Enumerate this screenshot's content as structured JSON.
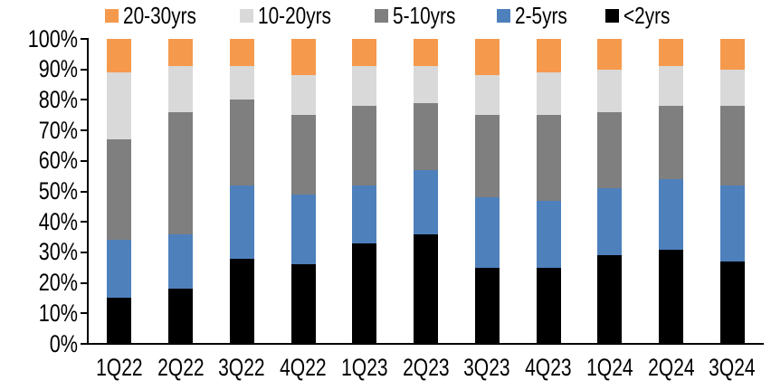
{
  "chart_data": {
    "type": "bar",
    "variant": "100-percent-stacked-column",
    "title": "",
    "xlabel": "",
    "ylabel": "",
    "categories": [
      "1Q22",
      "2Q22",
      "3Q22",
      "4Q22",
      "1Q23",
      "2Q23",
      "3Q23",
      "4Q23",
      "1Q24",
      "2Q24",
      "3Q24"
    ],
    "series": [
      {
        "name": "<2yrs",
        "color": "#000000",
        "values": [
          15,
          18,
          28,
          26,
          33,
          36,
          25,
          25,
          29,
          31,
          27
        ]
      },
      {
        "name": "2-5yrs",
        "color": "#4E80BC",
        "values": [
          19,
          18,
          24,
          23,
          19,
          21,
          23,
          22,
          22,
          23,
          25
        ]
      },
      {
        "name": "5-10yrs",
        "color": "#7F7F7F",
        "values": [
          33,
          40,
          28,
          26,
          26,
          22,
          27,
          28,
          25,
          24,
          26
        ]
      },
      {
        "name": "10-20yrs",
        "color": "#D9D9D9",
        "values": [
          22,
          15,
          11,
          13,
          13,
          12,
          13,
          14,
          14,
          13,
          12
        ]
      },
      {
        "name": "20-30yrs",
        "color": "#F5994D",
        "values": [
          11,
          9,
          9,
          12,
          9,
          9,
          12,
          11,
          10,
          9,
          10
        ]
      }
    ],
    "stack_order_bottom_to_top": [
      "<2yrs",
      "2-5yrs",
      "5-10yrs",
      "10-20yrs",
      "20-30yrs"
    ],
    "legend": {
      "position": "top",
      "labels": [
        "20-30yrs",
        "10-20yrs",
        "5-10yrs",
        "2-5yrs",
        "<2yrs"
      ]
    },
    "y_axis": {
      "min": 0,
      "max": 100,
      "tick_step": 10,
      "tick_labels": [
        "0%",
        "10%",
        "20%",
        "30%",
        "40%",
        "50%",
        "60%",
        "70%",
        "80%",
        "90%",
        "100%"
      ],
      "grid": false
    },
    "axis_color": "#000000",
    "background_color": "#FFFFFF",
    "text_color": "#000000"
  }
}
